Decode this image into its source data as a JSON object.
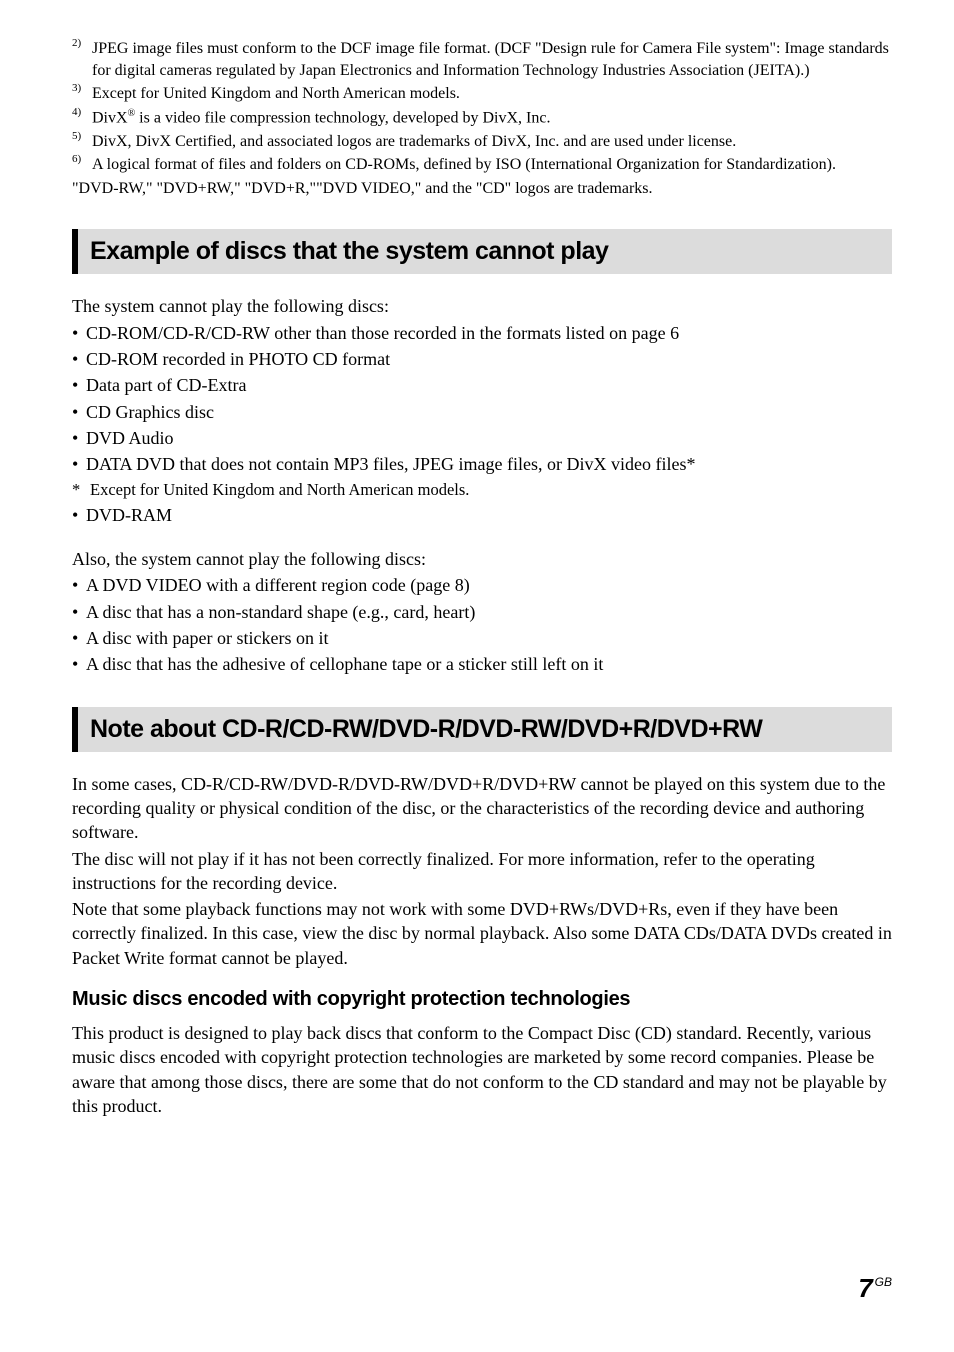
{
  "footnotes": {
    "fn2_sup": "2)",
    "fn2_text": "JPEG image files must conform to the DCF image file format. (DCF \"Design rule for Camera File system\": Image standards for digital cameras regulated by Japan Electronics and Information Technology Industries Association (JEITA).)",
    "fn3_sup": "3)",
    "fn3_text": "Except for United Kingdom and North American models.",
    "fn4_sup": "4)",
    "fn4_text_a": "DivX",
    "fn4_reg": "®",
    "fn4_text_b": " is a video file compression technology, developed by DivX, Inc.",
    "fn5_sup": "5)",
    "fn5_text": "DivX, DivX Certified, and associated logos are trademarks of DivX, Inc. and are used under license.",
    "fn6_sup": "6)",
    "fn6_text": "A logical format of files and folders on CD-ROMs, defined by ISO (International Organization for Standardization).",
    "trademark": "\"DVD-RW,\" \"DVD+RW,\" \"DVD+R,\"\"DVD VIDEO,\" and the \"CD\" logos are trademarks."
  },
  "section1": {
    "title": "Example of discs that the system cannot play",
    "intro": "The system cannot play the following discs:",
    "bullets": [
      "CD-ROM/CD-R/CD-RW other than those recorded in the formats listed on page 6",
      "CD-ROM recorded in PHOTO CD format",
      "Data part of CD-Extra",
      "CD Graphics disc",
      "DVD Audio",
      "DATA DVD that does not contain MP3 files, JPEG image files, or DivX video files*"
    ],
    "star_note": "Except for United Kingdom and North American models.",
    "bullets2": [
      "DVD-RAM"
    ],
    "intro2": "Also, the system cannot play the following discs:",
    "bullets3": [
      "A DVD VIDEO with a different region code (page 8)",
      "A disc that has a non-standard shape (e.g., card, heart)",
      "A disc with paper or stickers on it",
      "A disc that has the adhesive of cellophane tape or a sticker still left on it"
    ]
  },
  "section2": {
    "title": "Note about CD-R/CD-RW/DVD-R/DVD-RW/DVD+R/DVD+RW",
    "para1": "In some cases, CD-R/CD-RW/DVD-R/DVD-RW/DVD+R/DVD+RW cannot be played on this system due to the recording quality or physical condition of the disc, or the characteristics of the recording device and authoring software.",
    "para2": "The disc will not play if it has not been correctly finalized. For more information, refer to the operating instructions for the recording device.",
    "para3": "Note that some playback functions may not work with some DVD+RWs/DVD+Rs, even if they have been correctly finalized. In this case, view the disc by normal playback. Also some DATA CDs/DATA DVDs created in Packet Write format cannot be played.",
    "sub_heading": "Music discs encoded with copyright protection technologies",
    "para4": "This product is designed to play back discs that conform to the Compact Disc (CD) standard. Recently, various music discs encoded with copyright protection technologies are marketed by some record companies. Please be aware that among those discs, there are some that do not conform to the CD standard and may not be playable by this product."
  },
  "footer": {
    "page_num": "7",
    "lang": "GB"
  }
}
